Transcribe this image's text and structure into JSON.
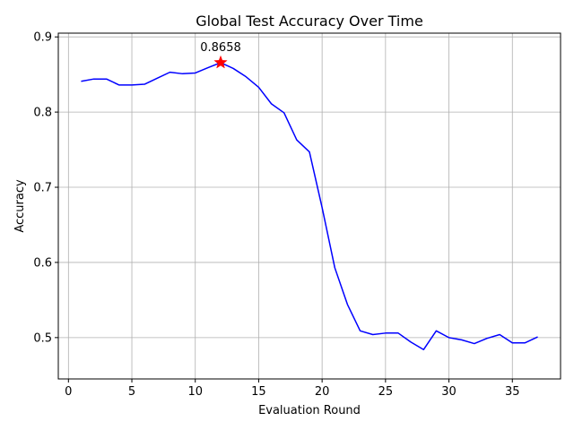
{
  "chart_data": {
    "type": "line",
    "title": "Global Test Accuracy Over Time",
    "xlabel": "Evaluation Round",
    "ylabel": "Accuracy",
    "xlim": [
      -0.8,
      38.8
    ],
    "ylim": [
      0.445,
      0.905
    ],
    "xticks": [
      0,
      5,
      10,
      15,
      20,
      25,
      30,
      35
    ],
    "yticks": [
      0.5,
      0.6,
      0.7,
      0.8,
      0.9
    ],
    "grid": true,
    "line_color": "#0000ff",
    "series": [
      {
        "x": [
          1,
          2,
          3,
          4,
          5,
          6,
          7,
          8,
          9,
          10,
          11,
          12,
          13,
          14,
          15,
          16,
          17,
          18,
          19,
          20,
          21,
          22,
          23,
          24,
          25,
          26,
          27,
          28,
          29,
          30,
          31,
          32,
          33,
          34,
          35,
          36,
          37
        ],
        "values": [
          0.841,
          0.844,
          0.844,
          0.836,
          0.836,
          0.837,
          0.845,
          0.853,
          0.851,
          0.852,
          0.859,
          0.8658,
          0.858,
          0.847,
          0.833,
          0.811,
          0.799,
          0.763,
          0.747,
          0.673,
          0.593,
          0.544,
          0.509,
          0.504,
          0.506,
          0.506,
          0.494,
          0.484,
          0.509,
          0.5,
          0.497,
          0.492,
          0.499,
          0.504,
          0.493,
          0.493,
          0.501
        ]
      }
    ],
    "max_marker": {
      "x": 12,
      "y": 0.8658,
      "label": "0.8658",
      "color": "#ff0000"
    }
  }
}
